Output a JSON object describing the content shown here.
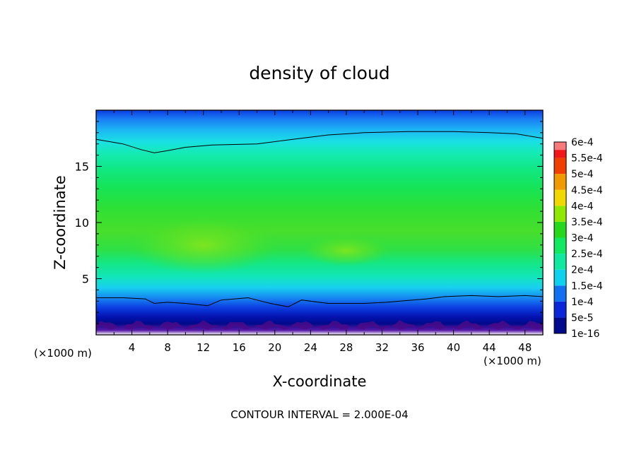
{
  "chart_data": {
    "type": "heatmap",
    "title": "density of cloud",
    "xlabel": "X-coordinate",
    "ylabel": "Z-coordinate",
    "x_unit_left": "(×1000 m)",
    "x_unit_right": "(×1000 m)",
    "xlim": [
      0,
      50
    ],
    "ylim": [
      0,
      20
    ],
    "x_ticks": [
      4,
      8,
      12,
      16,
      20,
      24,
      28,
      32,
      36,
      40,
      44,
      48
    ],
    "x_tick_labels": [
      "4",
      "8",
      "12",
      "16",
      "20",
      "24",
      "28",
      "32",
      "36",
      "40",
      "44",
      "48"
    ],
    "y_ticks": [
      5,
      10,
      15
    ],
    "y_tick_labels": [
      "5",
      "10",
      "15"
    ],
    "footer": "CONTOUR INTERVAL = 2.000E-04",
    "contour_interval": 0.0002,
    "colorbar": {
      "levels": [
        1e-16,
        5e-05,
        0.0001,
        0.00015,
        0.0002,
        0.00025,
        0.0003,
        0.00035,
        0.0004,
        0.00045,
        0.0005,
        0.00055,
        0.0006
      ],
      "labels": [
        "1e-16",
        "5e-5",
        "1e-4",
        "1.5e-4",
        "2e-4",
        "2.5e-4",
        "3e-4",
        "3.5e-4",
        "4e-4",
        "4.5e-4",
        "5e-4",
        "5.5e-4",
        "6e-4"
      ],
      "colors": [
        "#6a1fb0",
        "#000a8c",
        "#0a28d8",
        "#1070f0",
        "#10d0f0",
        "#12e8a0",
        "#12e860",
        "#26d81c",
        "#90e800",
        "#f0d800",
        "#f09a00",
        "#f04000",
        "#f01818",
        "#f87a7a"
      ]
    },
    "contour_lines": [
      {
        "level": 0.0002,
        "x": [
          0,
          3,
          5,
          6.5,
          8,
          10,
          13,
          18,
          22,
          26,
          30,
          35,
          40,
          44,
          47,
          50
        ],
        "z": [
          17.4,
          17.0,
          16.5,
          16.2,
          16.4,
          16.7,
          16.9,
          17.0,
          17.4,
          17.8,
          18.0,
          18.1,
          18.1,
          18.0,
          17.9,
          17.5
        ]
      },
      {
        "level": 0.0002,
        "x": [
          0,
          3,
          5.5,
          6.5,
          8,
          10,
          12.5,
          14,
          17,
          19.5,
          21.5,
          23,
          26,
          30,
          32.5,
          34,
          37,
          39,
          42,
          45,
          48,
          50
        ],
        "z": [
          3.3,
          3.3,
          3.2,
          2.8,
          2.9,
          2.8,
          2.6,
          3.1,
          3.3,
          2.8,
          2.5,
          3.1,
          2.8,
          2.8,
          2.9,
          3.0,
          3.2,
          3.4,
          3.5,
          3.4,
          3.5,
          3.4
        ]
      }
    ]
  }
}
